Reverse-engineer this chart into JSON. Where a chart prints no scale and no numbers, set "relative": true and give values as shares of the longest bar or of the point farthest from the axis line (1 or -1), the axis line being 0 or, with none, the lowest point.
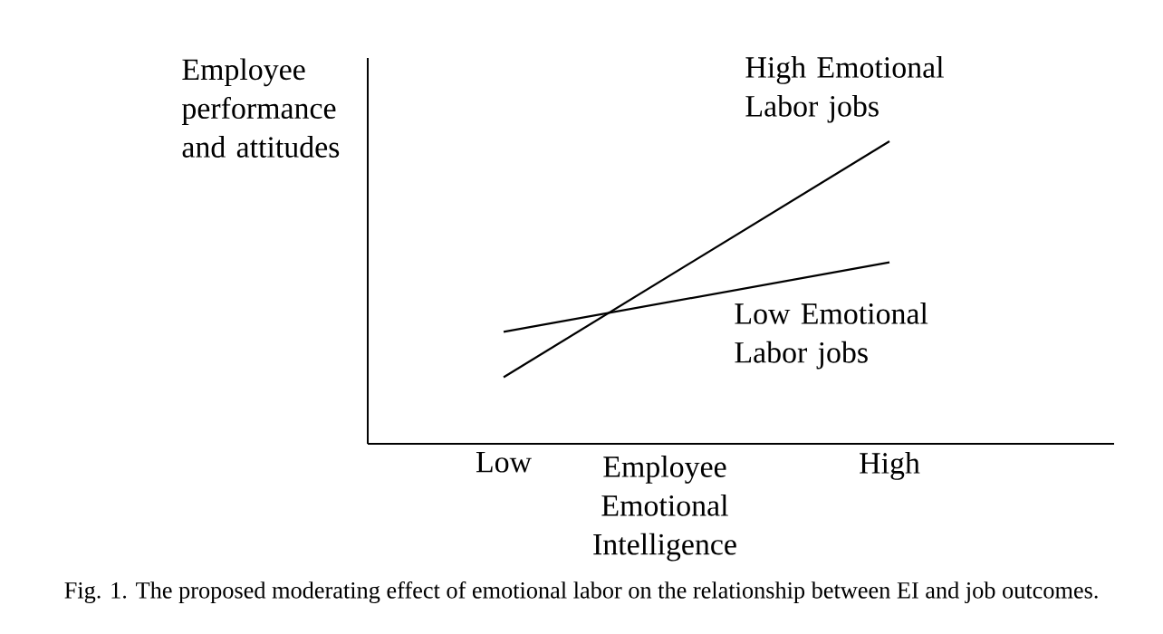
{
  "chart_data": {
    "type": "line",
    "relative": true,
    "ylabel": "Employee performance and attitudes",
    "xlabel": "Employee Emotional Intelligence",
    "categories": [
      "Low",
      "High"
    ],
    "series": [
      {
        "name": "High Emotional Labor jobs",
        "color": "#000000",
        "values": [
          0.22,
          1
        ]
      },
      {
        "name": "Low Emotional Labor jobs",
        "color": "#000000",
        "values": [
          0.37,
          0.6
        ]
      }
    ],
    "annotations": [
      "Fig. 1. The proposed moderating effect of emotional labor on the relationship between EI and job outcomes."
    ]
  }
}
